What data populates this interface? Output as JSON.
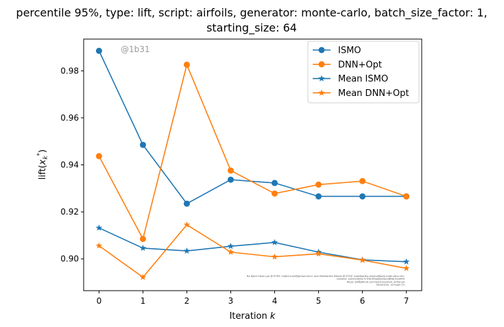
{
  "chart_data": {
    "type": "line",
    "title_line1": "percentile 95%, type: lift, script: airfoils, generator: monte-carlo, batch_size_factor: 1,",
    "title_line2": "starting_size: 64",
    "xlabel": "Iteration k",
    "ylabel": "lift(x_k^*)",
    "xlim": [
      -0.35,
      7.35
    ],
    "ylim": [
      0.8865,
      0.9935
    ],
    "xticks": [
      0,
      1,
      2,
      3,
      4,
      5,
      6,
      7
    ],
    "yticks": [
      0.9,
      0.92,
      0.94,
      0.96,
      0.98
    ],
    "ytick_labels": [
      "0.90",
      "0.92",
      "0.94",
      "0.96",
      "0.98"
    ],
    "x": [
      0,
      1,
      2,
      3,
      4,
      5,
      6,
      7
    ],
    "legend_position": "top-right",
    "watermark": "@1b31",
    "series": [
      {
        "name": "ISMO",
        "color": "#1f77b4",
        "marker": "circle",
        "values": [
          0.9885,
          0.9485,
          0.9235,
          0.9337,
          0.9323,
          0.9266,
          0.9266,
          0.9266
        ]
      },
      {
        "name": "DNN+Opt",
        "color": "#ff7f0e",
        "marker": "circle",
        "values": [
          0.9437,
          0.9085,
          0.9826,
          0.9376,
          0.9278,
          0.9316,
          0.9331,
          0.9266
        ]
      },
      {
        "name": "Mean ISMO",
        "color": "#1f77b4",
        "marker": "star",
        "values": [
          0.9132,
          0.9046,
          0.9034,
          0.9054,
          0.907,
          0.9029,
          0.8996,
          0.8988
        ]
      },
      {
        "name": "Mean DNN+Opt",
        "color": "#ff7f0e",
        "marker": "star",
        "values": [
          0.9056,
          0.8922,
          0.9145,
          0.9029,
          0.9009,
          0.9022,
          0.8995,
          0.896
        ]
      }
    ],
    "footnote_lines": [
      "By Kjetil Olsen Lye @ ETHZ <kjetil.o.lye@gmail.com> and Siddhartha Mishra @ ETHZ <siddhartha.mishra@sam.math.ethz.ch>",
      "Commit: 1b31fc5b5fc7c7f6c3f9aa5b03a1f8f6b7e2d9f0",
      "Repo: git@github.com:kjetil-lye/ismo_airfoil.git",
      "Hostname: eu-login-15"
    ]
  }
}
